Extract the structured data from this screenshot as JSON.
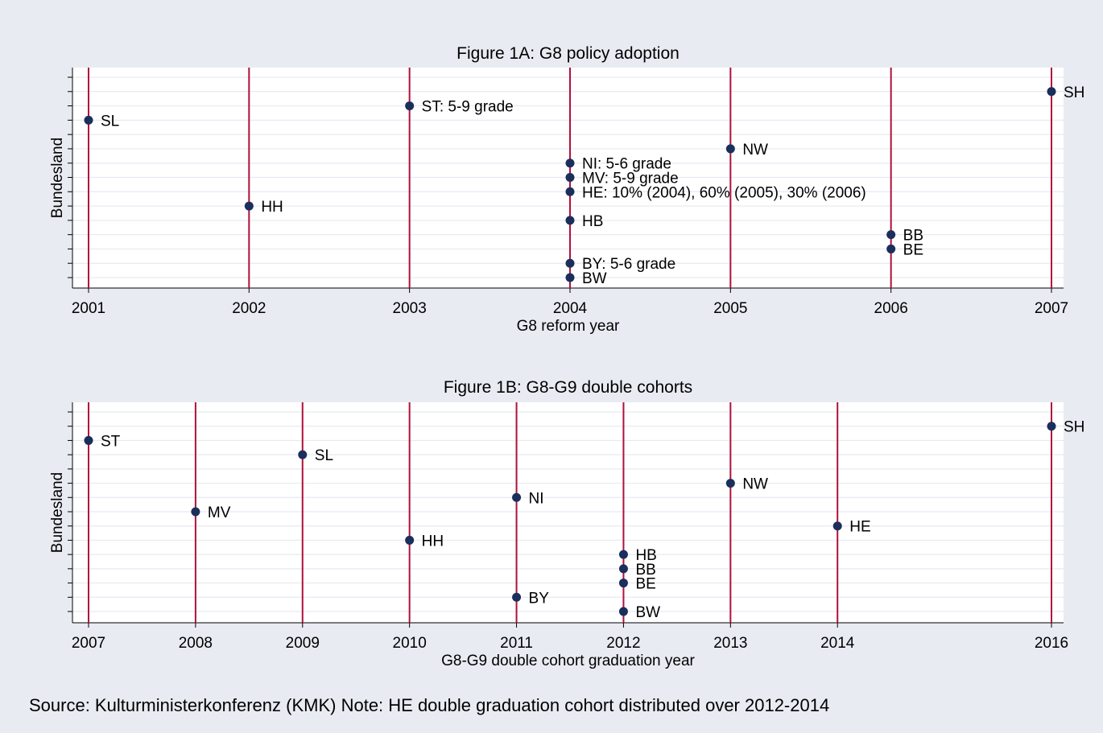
{
  "colors": {
    "background": "#e8ebf2",
    "plot_area": "#ffffff",
    "gridline": "#e6eaf2",
    "reference_line": "#b0103a",
    "marker": "#1a2f5b"
  },
  "footer_note": "Source: Kulturministerkonferenz (KMK) Note: HE double graduation cohort distributed over 2012-2014",
  "chart_data": [
    {
      "type": "scatter",
      "title": "Figure 1A: G8 policy adoption",
      "xlabel": "G8 reform year",
      "ylabel": "Bundesland",
      "xlim": [
        2001,
        2007
      ],
      "xticks": [
        2001,
        2002,
        2003,
        2004,
        2005,
        2006,
        2007
      ],
      "vlines": [
        2001,
        2002,
        2003,
        2004,
        2005,
        2006,
        2007
      ],
      "grid": "horizontal",
      "ylim": [
        0,
        14
      ],
      "points": [
        {
          "x": 2001,
          "y": 11,
          "label": "SL"
        },
        {
          "x": 2002,
          "y": 5,
          "label": "HH"
        },
        {
          "x": 2003,
          "y": 12,
          "label": "ST: 5-9 grade"
        },
        {
          "x": 2004,
          "y": 8,
          "label": "NI: 5-6 grade"
        },
        {
          "x": 2004,
          "y": 7,
          "label": "MV: 5-9 grade"
        },
        {
          "x": 2004,
          "y": 6,
          "label": "HE: 10% (2004), 60% (2005), 30% (2006)"
        },
        {
          "x": 2004,
          "y": 4,
          "label": "HB"
        },
        {
          "x": 2004,
          "y": 1,
          "label": "BY: 5-6 grade"
        },
        {
          "x": 2004,
          "y": 0,
          "label": "BW"
        },
        {
          "x": 2005,
          "y": 9,
          "label": "NW"
        },
        {
          "x": 2006,
          "y": 3,
          "label": "BB"
        },
        {
          "x": 2006,
          "y": 2,
          "label": "BE"
        },
        {
          "x": 2007,
          "y": 13,
          "label": "SH"
        }
      ]
    },
    {
      "type": "scatter",
      "title": "Figure 1B: G8-G9 double cohorts",
      "xlabel": "G8-G9 double cohort graduation year",
      "ylabel": "Bundesland",
      "xlim": [
        2007,
        2016
      ],
      "xticks": [
        2007,
        2008,
        2009,
        2010,
        2011,
        2012,
        2013,
        2014,
        2016
      ],
      "vlines": [
        2007,
        2008,
        2009,
        2010,
        2011,
        2012,
        2013,
        2014,
        2016
      ],
      "grid": "horizontal",
      "ylim": [
        0,
        14
      ],
      "points": [
        {
          "x": 2007,
          "y": 12,
          "label": "ST"
        },
        {
          "x": 2008,
          "y": 7,
          "label": "MV"
        },
        {
          "x": 2009,
          "y": 11,
          "label": "SL"
        },
        {
          "x": 2010,
          "y": 5,
          "label": "HH"
        },
        {
          "x": 2011,
          "y": 8,
          "label": "NI"
        },
        {
          "x": 2011,
          "y": 1,
          "label": "BY"
        },
        {
          "x": 2012,
          "y": 4,
          "label": "HB"
        },
        {
          "x": 2012,
          "y": 3,
          "label": "BB"
        },
        {
          "x": 2012,
          "y": 2,
          "label": "BE"
        },
        {
          "x": 2012,
          "y": 0,
          "label": "BW"
        },
        {
          "x": 2013,
          "y": 9,
          "label": "NW"
        },
        {
          "x": 2014,
          "y": 6,
          "label": "HE"
        },
        {
          "x": 2016,
          "y": 13,
          "label": "SH"
        }
      ]
    }
  ]
}
